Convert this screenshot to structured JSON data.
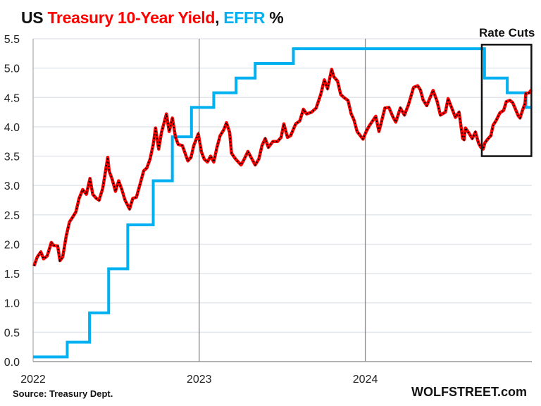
{
  "chart_data": {
    "type": "line",
    "title": {
      "part1": "US ",
      "part2": "Treasury 10-Year Yield",
      "part3": ", ",
      "part4": "EFFR",
      "part5": " %"
    },
    "colors": {
      "title_base": "#111111",
      "yield": "#ff0000",
      "yield_dash": "#000000",
      "effr": "#00b0f0",
      "grid": "#e3e6ea",
      "year_line": "#8a8a8a"
    },
    "xlabel": "",
    "ylabel": "",
    "ylim": [
      0,
      5.5
    ],
    "xlim": [
      "2022-01-01",
      "2025-01-01"
    ],
    "yticks": [
      "0.0",
      "0.5",
      "1.0",
      "1.5",
      "2.0",
      "2.5",
      "3.0",
      "3.5",
      "4.0",
      "4.5",
      "5.0",
      "5.5"
    ],
    "xticks": [
      {
        "label": "2022",
        "date": "2022-01-01"
      },
      {
        "label": "2023",
        "date": "2023-01-01"
      },
      {
        "label": "2024",
        "date": "2024-01-01"
      }
    ],
    "grid": "horizontal",
    "annotation": {
      "label": "Rate Cuts",
      "box": {
        "x": [
          "2024-09-13",
          "2024-12-31"
        ],
        "y": [
          3.5,
          5.4
        ]
      }
    },
    "series": [
      {
        "name": "EFFR",
        "style": "step",
        "points": [
          [
            "2022-01-01",
            0.08
          ],
          [
            "2022-03-17",
            0.33
          ],
          [
            "2022-05-05",
            0.83
          ],
          [
            "2022-06-16",
            1.58
          ],
          [
            "2022-07-28",
            2.33
          ],
          [
            "2022-09-22",
            3.08
          ],
          [
            "2022-11-03",
            3.83
          ],
          [
            "2022-12-15",
            4.33
          ],
          [
            "2023-02-02",
            4.58
          ],
          [
            "2023-03-23",
            4.83
          ],
          [
            "2023-05-04",
            5.08
          ],
          [
            "2023-07-27",
            5.33
          ],
          [
            "2024-09-19",
            4.83
          ],
          [
            "2024-11-08",
            4.58
          ],
          [
            "2024-12-19",
            4.33
          ],
          [
            "2024-12-31",
            4.33
          ]
        ]
      },
      {
        "name": "Treasury 10-Year Yield",
        "style": "line",
        "points": [
          [
            "2022-01-03",
            1.63
          ],
          [
            "2022-01-10",
            1.78
          ],
          [
            "2022-01-18",
            1.87
          ],
          [
            "2022-01-24",
            1.75
          ],
          [
            "2022-02-01",
            1.8
          ],
          [
            "2022-02-10",
            2.03
          ],
          [
            "2022-02-15",
            1.98
          ],
          [
            "2022-02-24",
            1.97
          ],
          [
            "2022-03-01",
            1.72
          ],
          [
            "2022-03-07",
            1.78
          ],
          [
            "2022-03-15",
            2.15
          ],
          [
            "2022-03-22",
            2.38
          ],
          [
            "2022-03-28",
            2.45
          ],
          [
            "2022-04-05",
            2.55
          ],
          [
            "2022-04-12",
            2.78
          ],
          [
            "2022-04-20",
            2.93
          ],
          [
            "2022-04-28",
            2.85
          ],
          [
            "2022-05-06",
            3.12
          ],
          [
            "2022-05-12",
            2.85
          ],
          [
            "2022-05-20",
            2.78
          ],
          [
            "2022-05-26",
            2.75
          ],
          [
            "2022-06-03",
            2.95
          ],
          [
            "2022-06-14",
            3.48
          ],
          [
            "2022-06-17",
            3.25
          ],
          [
            "2022-06-24",
            3.1
          ],
          [
            "2022-07-01",
            2.9
          ],
          [
            "2022-07-08",
            3.08
          ],
          [
            "2022-07-15",
            2.93
          ],
          [
            "2022-07-22",
            2.75
          ],
          [
            "2022-08-01",
            2.6
          ],
          [
            "2022-08-08",
            2.78
          ],
          [
            "2022-08-16",
            2.8
          ],
          [
            "2022-08-25",
            3.05
          ],
          [
            "2022-09-01",
            3.25
          ],
          [
            "2022-09-08",
            3.3
          ],
          [
            "2022-09-15",
            3.45
          ],
          [
            "2022-09-22",
            3.7
          ],
          [
            "2022-09-27",
            3.98
          ],
          [
            "2022-10-04",
            3.62
          ],
          [
            "2022-10-10",
            3.9
          ],
          [
            "2022-10-21",
            4.22
          ],
          [
            "2022-10-27",
            3.92
          ],
          [
            "2022-11-03",
            4.15
          ],
          [
            "2022-11-10",
            3.82
          ],
          [
            "2022-11-16",
            3.7
          ],
          [
            "2022-11-25",
            3.68
          ],
          [
            "2022-12-01",
            3.55
          ],
          [
            "2022-12-07",
            3.42
          ],
          [
            "2022-12-14",
            3.48
          ],
          [
            "2022-12-20",
            3.68
          ],
          [
            "2022-12-30",
            3.88
          ],
          [
            "2023-01-06",
            3.57
          ],
          [
            "2023-01-12",
            3.45
          ],
          [
            "2023-01-19",
            3.4
          ],
          [
            "2023-01-26",
            3.5
          ],
          [
            "2023-02-02",
            3.4
          ],
          [
            "2023-02-09",
            3.65
          ],
          [
            "2023-02-16",
            3.85
          ],
          [
            "2023-02-24",
            3.95
          ],
          [
            "2023-03-02",
            4.07
          ],
          [
            "2023-03-09",
            3.9
          ],
          [
            "2023-03-13",
            3.55
          ],
          [
            "2023-03-22",
            3.45
          ],
          [
            "2023-04-03",
            3.35
          ],
          [
            "2023-04-10",
            3.45
          ],
          [
            "2023-04-18",
            3.58
          ],
          [
            "2023-04-27",
            3.45
          ],
          [
            "2023-05-04",
            3.35
          ],
          [
            "2023-05-12",
            3.45
          ],
          [
            "2023-05-19",
            3.68
          ],
          [
            "2023-05-26",
            3.8
          ],
          [
            "2023-06-02",
            3.65
          ],
          [
            "2023-06-12",
            3.75
          ],
          [
            "2023-06-22",
            3.75
          ],
          [
            "2023-06-30",
            3.82
          ],
          [
            "2023-07-06",
            4.05
          ],
          [
            "2023-07-14",
            3.82
          ],
          [
            "2023-07-21",
            3.85
          ],
          [
            "2023-08-01",
            4.05
          ],
          [
            "2023-08-10",
            4.1
          ],
          [
            "2023-08-18",
            4.3
          ],
          [
            "2023-08-25",
            4.22
          ],
          [
            "2023-09-05",
            4.25
          ],
          [
            "2023-09-15",
            4.32
          ],
          [
            "2023-09-25",
            4.55
          ],
          [
            "2023-10-03",
            4.8
          ],
          [
            "2023-10-10",
            4.65
          ],
          [
            "2023-10-19",
            4.98
          ],
          [
            "2023-10-24",
            4.85
          ],
          [
            "2023-11-01",
            4.78
          ],
          [
            "2023-11-08",
            4.55
          ],
          [
            "2023-11-15",
            4.5
          ],
          [
            "2023-11-24",
            4.45
          ],
          [
            "2023-12-01",
            4.22
          ],
          [
            "2023-12-07",
            4.12
          ],
          [
            "2023-12-14",
            3.92
          ],
          [
            "2023-12-27",
            3.79
          ],
          [
            "2024-01-03",
            3.92
          ],
          [
            "2024-01-10",
            4.02
          ],
          [
            "2024-01-17",
            4.1
          ],
          [
            "2024-01-24",
            4.18
          ],
          [
            "2024-01-31",
            3.92
          ],
          [
            "2024-02-06",
            4.1
          ],
          [
            "2024-02-13",
            4.32
          ],
          [
            "2024-02-22",
            4.33
          ],
          [
            "2024-03-01",
            4.18
          ],
          [
            "2024-03-08",
            4.08
          ],
          [
            "2024-03-18",
            4.32
          ],
          [
            "2024-03-27",
            4.2
          ],
          [
            "2024-04-05",
            4.38
          ],
          [
            "2024-04-16",
            4.67
          ],
          [
            "2024-04-25",
            4.7
          ],
          [
            "2024-05-01",
            4.63
          ],
          [
            "2024-05-07",
            4.46
          ],
          [
            "2024-05-15",
            4.36
          ],
          [
            "2024-05-29",
            4.62
          ],
          [
            "2024-06-07",
            4.43
          ],
          [
            "2024-06-14",
            4.2
          ],
          [
            "2024-06-25",
            4.25
          ],
          [
            "2024-07-01",
            4.48
          ],
          [
            "2024-07-10",
            4.3
          ],
          [
            "2024-07-17",
            4.16
          ],
          [
            "2024-07-25",
            4.25
          ],
          [
            "2024-08-02",
            3.8
          ],
          [
            "2024-08-05",
            3.78
          ],
          [
            "2024-08-08",
            3.98
          ],
          [
            "2024-08-16",
            3.89
          ],
          [
            "2024-08-23",
            3.8
          ],
          [
            "2024-08-30",
            3.91
          ],
          [
            "2024-09-06",
            3.72
          ],
          [
            "2024-09-11",
            3.65
          ],
          [
            "2024-09-16",
            3.62
          ],
          [
            "2024-09-20",
            3.73
          ],
          [
            "2024-09-26",
            3.79
          ],
          [
            "2024-10-03",
            3.85
          ],
          [
            "2024-10-08",
            4.03
          ],
          [
            "2024-10-14",
            4.1
          ],
          [
            "2024-10-23",
            4.24
          ],
          [
            "2024-10-31",
            4.28
          ],
          [
            "2024-11-06",
            4.43
          ],
          [
            "2024-11-14",
            4.45
          ],
          [
            "2024-11-20",
            4.41
          ],
          [
            "2024-11-26",
            4.3
          ],
          [
            "2024-12-02",
            4.19
          ],
          [
            "2024-12-06",
            4.15
          ],
          [
            "2024-12-11",
            4.27
          ],
          [
            "2024-12-17",
            4.4
          ],
          [
            "2024-12-19",
            4.57
          ],
          [
            "2024-12-26",
            4.58
          ],
          [
            "2024-12-31",
            4.63
          ]
        ]
      }
    ]
  },
  "footer": {
    "source": "Source: Treasury Dept.",
    "brand": "WOLFSTREET.com"
  }
}
